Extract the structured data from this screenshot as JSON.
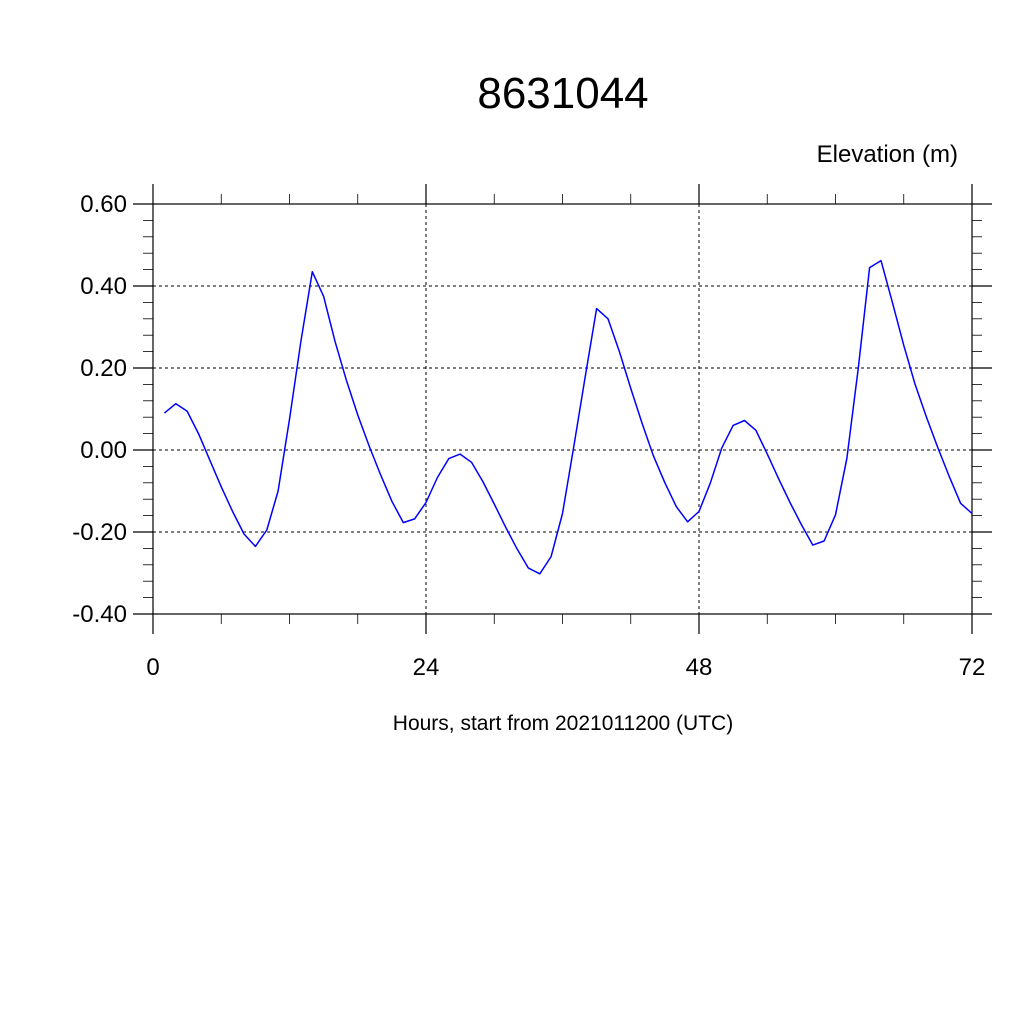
{
  "chart_data": {
    "type": "line",
    "title": "8631044",
    "ylabel": "Elevation (m)",
    "xlabel": "Hours, start from 2021011200 (UTC)",
    "xlim": [
      0,
      72
    ],
    "ylim": [
      -0.4,
      0.6
    ],
    "x_ticks": [
      0,
      24,
      48,
      72
    ],
    "x_tick_labels": [
      "0",
      "24",
      "48",
      "72"
    ],
    "y_ticks": [
      -0.4,
      -0.2,
      0.0,
      0.2,
      0.4,
      0.6
    ],
    "y_tick_labels": [
      "-0.40",
      "-0.20",
      "0.00",
      "0.20",
      "0.40",
      "0.60"
    ],
    "grid": true,
    "series": [
      {
        "color": "#0000ff",
        "x": [
          1,
          2,
          3,
          4,
          5,
          6,
          7,
          8,
          9,
          10,
          11,
          12,
          13,
          14,
          15,
          16,
          17,
          18,
          19,
          20,
          21,
          22,
          23,
          24,
          25,
          26,
          27,
          28,
          29,
          30,
          31,
          32,
          33,
          34,
          35,
          36,
          37,
          38,
          39,
          40,
          41,
          42,
          43,
          44,
          45,
          46,
          47,
          48,
          49,
          50,
          51,
          52,
          53,
          54,
          55,
          56,
          57,
          58,
          59,
          60,
          61,
          62,
          63,
          64,
          65,
          66,
          67,
          68,
          69,
          70,
          71,
          72
        ],
        "y": [
          0.09,
          0.113,
          0.095,
          0.04,
          -0.025,
          -0.09,
          -0.15,
          -0.205,
          -0.235,
          -0.195,
          -0.1,
          0.075,
          0.265,
          0.435,
          0.375,
          0.265,
          0.17,
          0.085,
          0.01,
          -0.06,
          -0.125,
          -0.177,
          -0.168,
          -0.128,
          -0.067,
          -0.021,
          -0.01,
          -0.03,
          -0.077,
          -0.132,
          -0.188,
          -0.241,
          -0.288,
          -0.302,
          -0.26,
          -0.155,
          0.01,
          0.18,
          0.345,
          0.32,
          0.24,
          0.15,
          0.065,
          -0.015,
          -0.08,
          -0.138,
          -0.175,
          -0.15,
          -0.08,
          0.005,
          0.06,
          0.072,
          0.048,
          -0.01,
          -0.07,
          -0.128,
          -0.182,
          -0.232,
          -0.222,
          -0.158,
          -0.02,
          0.2,
          0.445,
          0.462,
          0.36,
          0.255,
          0.16,
          0.08,
          0.005,
          -0.065,
          -0.13,
          -0.155
        ]
      }
    ]
  }
}
